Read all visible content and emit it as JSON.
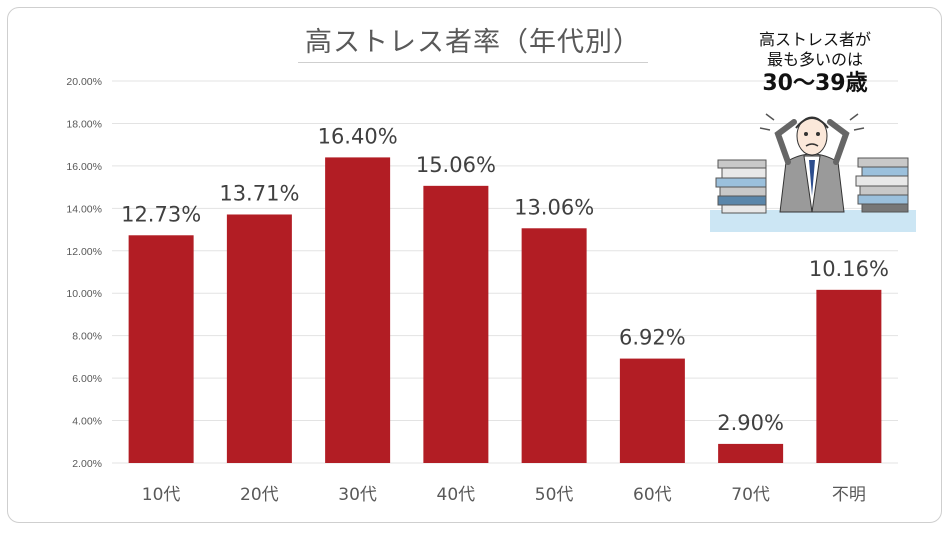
{
  "chart_data": {
    "type": "bar",
    "title": "高ストレス者率（年代別）",
    "categories": [
      "10代",
      "20代",
      "30代",
      "40代",
      "50代",
      "60代",
      "70代",
      "不明"
    ],
    "values": [
      12.73,
      13.71,
      16.4,
      15.06,
      13.06,
      6.92,
      2.9,
      10.16
    ],
    "data_labels": [
      "12.73%",
      "13.71%",
      "16.40%",
      "15.06%",
      "13.06%",
      "6.92%",
      "2.90%",
      "10.16%"
    ],
    "ylim": [
      2,
      20
    ],
    "yticks": [
      2,
      4,
      6,
      8,
      10,
      12,
      14,
      16,
      18,
      20
    ],
    "ytick_labels": [
      "2.00%",
      "4.00%",
      "6.00%",
      "8.00%",
      "10.00%",
      "12.00%",
      "14.00%",
      "16.00%",
      "18.00%",
      "20.00%"
    ],
    "bar_color": "#b21d24",
    "grid": true,
    "xlabel": "",
    "ylabel": ""
  },
  "callout": {
    "line1": "高ストレス者が",
    "line2": "最も多いのは",
    "line3": "30〜39歳"
  },
  "illustration": {
    "icon": "stressed-businessman-icon"
  }
}
